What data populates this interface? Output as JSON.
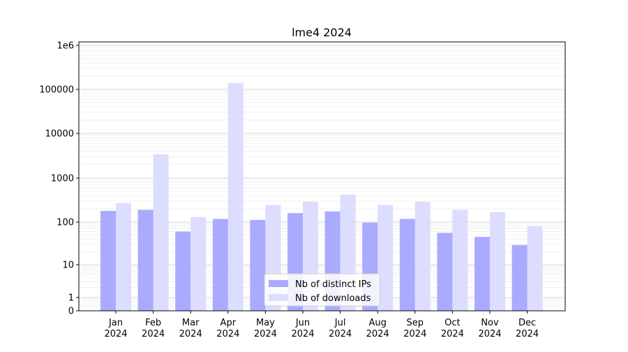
{
  "chart_data": {
    "type": "bar",
    "title": "lme4 2024",
    "xlabel": "",
    "ylabel": "",
    "yscale": "symlog",
    "ylim": [
      0,
      1000000
    ],
    "categories": [
      [
        "Jan",
        "2024"
      ],
      [
        "Feb",
        "2024"
      ],
      [
        "Mar",
        "2024"
      ],
      [
        "Apr",
        "2024"
      ],
      [
        "May",
        "2024"
      ],
      [
        "Jun",
        "2024"
      ],
      [
        "Jul",
        "2024"
      ],
      [
        "Aug",
        "2024"
      ],
      [
        "Sep",
        "2024"
      ],
      [
        "Oct",
        "2024"
      ],
      [
        "Nov",
        "2024"
      ],
      [
        "Dec",
        "2024"
      ]
    ],
    "y_ticks": [
      {
        "value": 0,
        "label": "0"
      },
      {
        "value": 1,
        "label": "1"
      },
      {
        "value": 10,
        "label": "10"
      },
      {
        "value": 100,
        "label": "100"
      },
      {
        "value": 1000,
        "label": "1000"
      },
      {
        "value": 10000,
        "label": "10000"
      },
      {
        "value": 100000,
        "label": "100000"
      },
      {
        "value": 1000000,
        "label": "1e6"
      }
    ],
    "series": [
      {
        "name": "Nb of distinct IPs",
        "color": "#aaaaff",
        "values": [
          180,
          190,
          60,
          118,
          112,
          160,
          175,
          97,
          118,
          56,
          45,
          29
        ]
      },
      {
        "name": "Nb of downloads",
        "color": "#ddddff",
        "values": [
          270,
          3400,
          130,
          140000,
          245,
          290,
          420,
          245,
          290,
          190,
          170,
          80
        ]
      }
    ],
    "grid": true,
    "legend_position": "lower-center"
  }
}
